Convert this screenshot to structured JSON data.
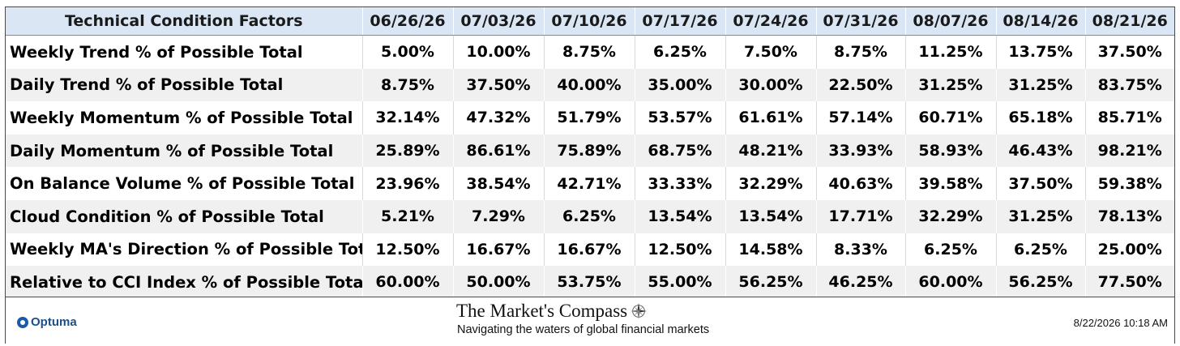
{
  "table": {
    "header_label": "Technical Condition Factors",
    "dates": [
      "06/26/26",
      "07/03/26",
      "07/10/26",
      "07/17/26",
      "07/24/26",
      "07/31/26",
      "08/07/26",
      "08/14/26",
      "08/21/26"
    ],
    "rows": [
      {
        "factor": "Weekly Trend % of Possible Total",
        "values": [
          "5.00%",
          "10.00%",
          "8.75%",
          "6.25%",
          "7.50%",
          "8.75%",
          "11.25%",
          "13.75%",
          "37.50%"
        ]
      },
      {
        "factor": "Daily Trend % of Possible Total",
        "values": [
          "8.75%",
          "37.50%",
          "40.00%",
          "35.00%",
          "30.00%",
          "22.50%",
          "31.25%",
          "31.25%",
          "83.75%"
        ]
      },
      {
        "factor": "Weekly Momentum % of Possible Total",
        "values": [
          "32.14%",
          "47.32%",
          "51.79%",
          "53.57%",
          "61.61%",
          "57.14%",
          "60.71%",
          "65.18%",
          "85.71%"
        ]
      },
      {
        "factor": "Daily Momentum % of Possible Total",
        "values": [
          "25.89%",
          "86.61%",
          "75.89%",
          "68.75%",
          "48.21%",
          "33.93%",
          "58.93%",
          "46.43%",
          "98.21%"
        ]
      },
      {
        "factor": "On Balance Volume % of Possible Total",
        "values": [
          "23.96%",
          "38.54%",
          "42.71%",
          "33.33%",
          "32.29%",
          "40.63%",
          "39.58%",
          "37.50%",
          "59.38%"
        ]
      },
      {
        "factor": "Cloud Condition % of Possible Total",
        "values": [
          "5.21%",
          "7.29%",
          "6.25%",
          "13.54%",
          "13.54%",
          "17.71%",
          "32.29%",
          "31.25%",
          "78.13%"
        ]
      },
      {
        "factor": "Weekly MA's Direction % of Possible Total",
        "values": [
          "12.50%",
          "16.67%",
          "16.67%",
          "12.50%",
          "14.58%",
          "8.33%",
          "6.25%",
          "6.25%",
          "25.00%"
        ]
      },
      {
        "factor": "Relative to CCI Index % of Possible Total",
        "values": [
          "60.00%",
          "50.00%",
          "53.75%",
          "55.00%",
          "56.25%",
          "46.25%",
          "60.00%",
          "56.25%",
          "77.50%"
        ]
      }
    ]
  },
  "footer": {
    "provider_logo_text": "Optuma",
    "brand_title": "The Market's Compass",
    "brand_tagline": "Navigating the waters of global financial markets",
    "timestamp": "8/22/2026 10:18 AM"
  },
  "icons": {
    "provider_logo": "optuma-logo-icon",
    "brand_emblem": "compass-rose-icon"
  },
  "colors": {
    "header_background": "#dae6f4",
    "alternate_row": "#f0f0f0",
    "optuma_blue": "#1b5aa8"
  }
}
